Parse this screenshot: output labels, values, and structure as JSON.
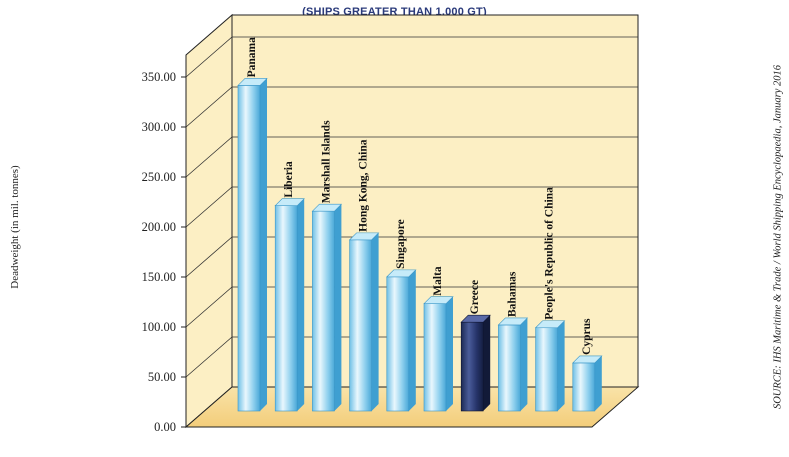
{
  "chart_data": {
    "type": "bar",
    "title": "(SHIPS GREATER THAN 1,000 GT)",
    "ylabel": "Deadweight (in mil. tonnes)",
    "source": "SOURCE: IHS Maritime & Trade / World Shipping Encyclopaedia, January 2016",
    "categories": [
      "Panama",
      "Liberia",
      "Marshall Islands",
      "Hong Kong, China",
      "Singapore",
      "Malta",
      "Greece",
      "Bahamas",
      "People's Republic of China",
      "Cyprus"
    ],
    "values": [
      352,
      222,
      216,
      185,
      145,
      116,
      96,
      93,
      90,
      52
    ],
    "highlight": "Greece",
    "ylim": [
      0,
      350
    ],
    "yticks": [
      "0.00",
      "50.00",
      "100.00",
      "150.00",
      "200.00",
      "250.00",
      "300.00",
      "350.00"
    ],
    "grid": true,
    "colors": {
      "bar": "#7fc8ea",
      "bar_highlight": "#23305f",
      "wall": "#fcefc4",
      "floor": "#f7d98f"
    }
  }
}
